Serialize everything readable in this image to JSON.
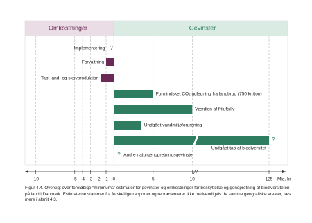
{
  "chart_data": {
    "type": "bar",
    "orientation": "horizontal",
    "left_header": "Omkostninger",
    "right_header": "Gevinster",
    "categories": [
      "Implementering",
      "Forvaltning",
      "Tabt land- og skovproduktion",
      "Formindsket CO₂ udledning fra landbrug (750 kr./ton)",
      "Værdien af friluftsliv",
      "Undgået vandmiljøforurening",
      "Undgået tab af biodiversitet",
      "Andre naturgenopretningsgevinster"
    ],
    "values": [
      null,
      -1,
      -1.7,
      5,
      10,
      3.5,
      125,
      null
    ],
    "question_marks": [
      "?",
      null,
      null,
      null,
      null,
      null,
      "?",
      "?"
    ],
    "negative_color": "#6b2a55",
    "positive_color": "#2e7d60",
    "xlim": [
      -11,
      130
    ],
    "xticks": [
      -10,
      -5,
      -4,
      -3,
      -2,
      -1,
      0,
      5,
      10,
      125
    ],
    "axis_break": true,
    "xlabel": "Mia. kr",
    "grid": true,
    "caption": "Figur 4.4. Oversigt over foreløbige “minimums” estimater for gevinster og omkostninger for beskyttelse og genopretning af biodiversiteten på land i Danmark. Estimaterne stammer fra forskellige rapporter og repræsenterer ikke nødvendigvis de samme geografiske arealer, læs mere i afsnit 4.3."
  }
}
